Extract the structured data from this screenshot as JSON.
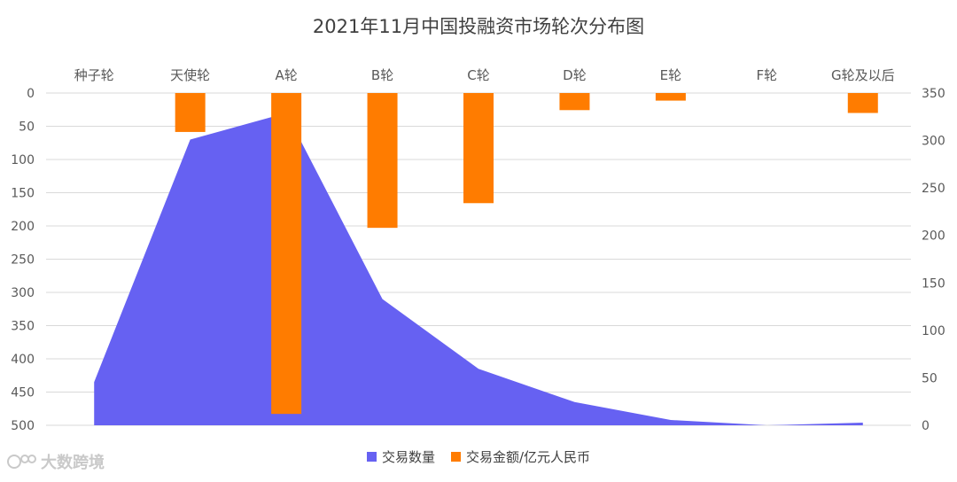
{
  "chart_data": {
    "type": "area+bar",
    "title": "2021年11月中国投融资市场轮次分布图",
    "categories": [
      "种子轮",
      "天使轮",
      "A轮",
      "B轮",
      "C轮",
      "D轮",
      "E轮",
      "F轮",
      "G轮及以后"
    ],
    "series": [
      {
        "name": "交易数量",
        "type": "area",
        "axis": "left",
        "color": "#6661F2",
        "values": [
          65,
          430,
          470,
          190,
          85,
          35,
          8,
          0,
          4
        ]
      },
      {
        "name": "交易金额/亿元人民币",
        "type": "bar",
        "axis": "right",
        "color": "#FF7C00",
        "values": [
          0,
          41,
          338,
          142,
          116,
          18,
          8,
          0,
          21
        ]
      }
    ],
    "left_axis": {
      "min": 0,
      "max": 500,
      "step": 50,
      "inverted": true
    },
    "right_axis": {
      "min": 0,
      "max": 350,
      "step": 50
    },
    "category_axis_position": "top",
    "grid": true,
    "legend_position": "bottom"
  },
  "watermark": {
    "text": "大数跨境"
  }
}
